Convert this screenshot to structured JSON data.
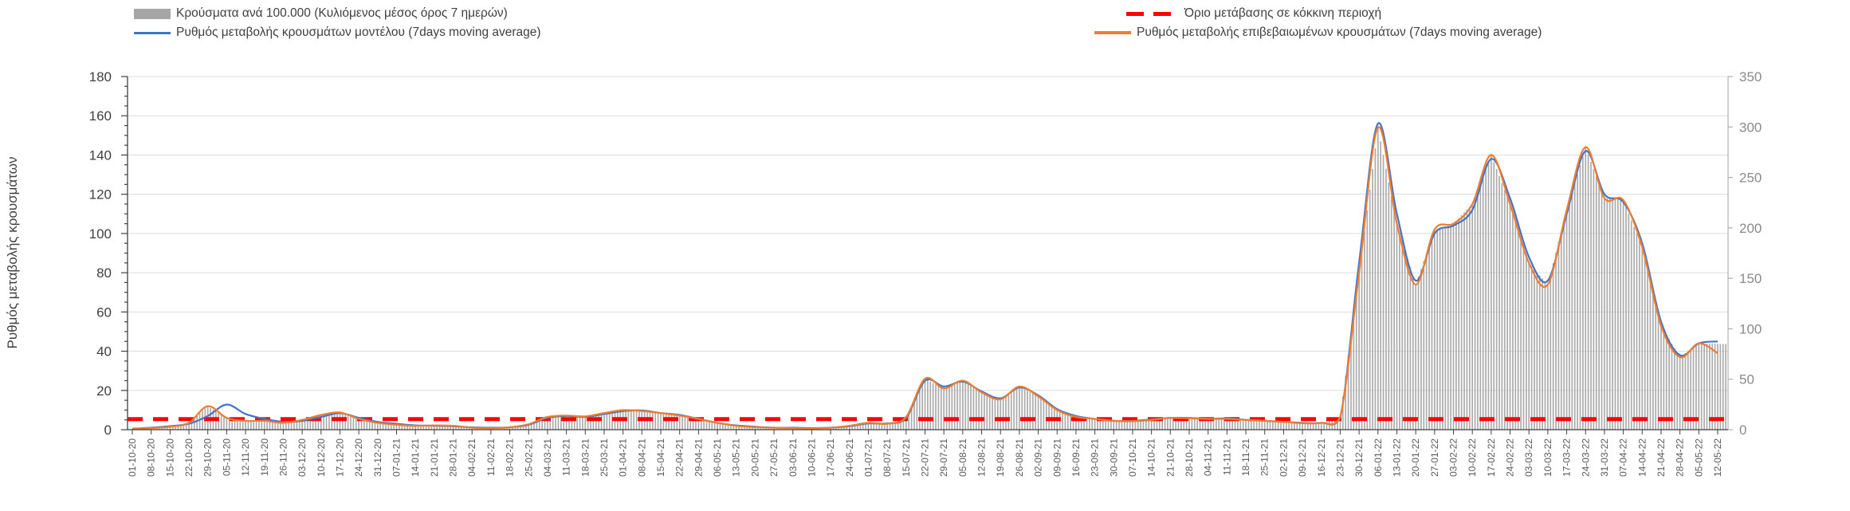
{
  "legend": {
    "cases": {
      "label": "Κρούσματα ανά 100.000 (Κυλιόμενος μέσος όρος 7 ημερών)",
      "color": "#a6a6a6"
    },
    "threshold": {
      "label": "Όριο μετάβασης σε κόκκινη περιοχή",
      "color": "#ff0000"
    },
    "model": {
      "label": "Ρυθμός μεταβολής κρουσμάτων μοντέλου (7days moving average)",
      "color": "#4472c4"
    },
    "confirmed": {
      "label": "Ρυθμός μεταβολής επιβεβαιωμένων κρουσμάτων (7days moving average)",
      "color": "#ed7d31"
    }
  },
  "chart_data": {
    "type": "combo-bar-line",
    "title": "",
    "left_axis": {
      "label": "Ρυθμός μεταβολής κρουσμάτων",
      "min": 0,
      "max": 180,
      "tick_step": 20,
      "minor_tick_step": 5,
      "tick_color": "#404040"
    },
    "right_axis": {
      "label": "",
      "min": 0,
      "max": 350,
      "tick_step": 50,
      "tick_color": "#8a8a8a"
    },
    "grid": {
      "color": "#dcdcdc",
      "horizontal_step_left_axis": 20
    },
    "threshold": {
      "name": "Όριο μετάβασης σε κόκκινη περιοχή",
      "left_axis_value": 5.4,
      "color": "#ff0000",
      "style": "dashed"
    },
    "categories": [
      "01-10-20",
      "08-10-20",
      "15-10-20",
      "22-10-20",
      "29-10-20",
      "05-11-20",
      "12-11-20",
      "19-11-20",
      "26-11-20",
      "03-12-20",
      "10-12-20",
      "17-12-20",
      "24-12-20",
      "31-12-20",
      "07-01-21",
      "14-01-21",
      "21-01-21",
      "28-01-21",
      "04-02-21",
      "11-02-21",
      "18-02-21",
      "25-02-21",
      "04-03-21",
      "11-03-21",
      "18-03-21",
      "25-03-21",
      "01-04-21",
      "08-04-21",
      "15-04-21",
      "22-04-21",
      "29-04-21",
      "06-05-21",
      "13-05-21",
      "20-05-21",
      "27-05-21",
      "03-06-21",
      "10-06-21",
      "17-06-21",
      "24-06-21",
      "01-07-21",
      "08-07-21",
      "15-07-21",
      "22-07-21",
      "29-07-21",
      "05-08-21",
      "12-08-21",
      "19-08-21",
      "26-08-21",
      "02-09-21",
      "09-09-21",
      "16-09-21",
      "23-09-21",
      "30-09-21",
      "07-10-21",
      "14-10-21",
      "21-10-21",
      "28-10-21",
      "04-11-21",
      "11-11-21",
      "18-11-21",
      "25-11-21",
      "02-12-21",
      "09-12-21",
      "16-12-21",
      "23-12-21",
      "30-12-21",
      "06-01-22",
      "13-01-22",
      "20-01-22",
      "27-01-22",
      "03-02-22",
      "10-02-22",
      "17-02-22",
      "24-02-22",
      "03-03-22",
      "10-03-22",
      "17-03-22",
      "24-03-22",
      "31-03-22",
      "07-04-22",
      "14-04-22",
      "21-04-22",
      "28-04-22",
      "05-05-22",
      "12-05-22"
    ],
    "series": [
      {
        "key": "cases",
        "name": "Κρούσματα ανά 100.000 (Κυλιόμενος μέσος όρος 7 ημερών)",
        "type": "bar",
        "axis": "right",
        "color": "#ababab",
        "values": [
          0.6,
          1.6,
          2.9,
          6.8,
          23.3,
          11.7,
          8.7,
          8.7,
          6.8,
          9.7,
          14.6,
          17.1,
          10.7,
          6.8,
          4.9,
          3.9,
          4.3,
          3.9,
          1.9,
          1.6,
          2.3,
          5.4,
          12.6,
          14,
          13.2,
          16.5,
          19.4,
          18.5,
          16.5,
          14,
          10.7,
          6.8,
          3.9,
          2.5,
          1.9,
          1.6,
          1.4,
          1.9,
          3.9,
          6.8,
          5.8,
          12.6,
          50.6,
          40.8,
          48.6,
          36.9,
          30.1,
          42.8,
          33.1,
          19.4,
          12.6,
          10.7,
          8.7,
          8.4,
          9.7,
          11.7,
          11.3,
          10.7,
          10.7,
          9.7,
          8.7,
          7.8,
          6.4,
          6.8,
          12.6,
          155.6,
          299.4,
          204.2,
          143.9,
          198.3,
          204.2,
          223.6,
          272.2,
          223.6,
          165.3,
          143.9,
          217.8,
          280,
          229.4,
          227.5,
          180.8,
          103,
          71.9,
          85.6,
          85
        ]
      },
      {
        "key": "model",
        "name": "Ρυθμός μεταβολής κρουσμάτων μοντέλου (7days moving average)",
        "type": "line",
        "axis": "left",
        "color": "#4472c4",
        "values": [
          0.5,
          1,
          1.8,
          3,
          7,
          12.8,
          8,
          5.5,
          4,
          4.5,
          6.5,
          8.5,
          6,
          4,
          3,
          2.2,
          2,
          1.8,
          1.2,
          1,
          1.2,
          2.5,
          6,
          7,
          6.5,
          8,
          9.5,
          9.8,
          8.5,
          7.5,
          5.5,
          3.5,
          2.2,
          1.5,
          1,
          1,
          0.8,
          1,
          1.8,
          3.2,
          3.2,
          6,
          25,
          22,
          24.5,
          19.5,
          16,
          21.5,
          17.5,
          10.5,
          7,
          5.5,
          4.5,
          4.5,
          5.2,
          6,
          6,
          5.5,
          5.8,
          5,
          4.5,
          4,
          3.5,
          3.5,
          6,
          85,
          156,
          110,
          76,
          100,
          104,
          112,
          138,
          118,
          88,
          76,
          110,
          142,
          120,
          116,
          95,
          55,
          38,
          44,
          45
        ]
      },
      {
        "key": "confirmed",
        "name": "Ρυθμός μεταβολής επιβεβαιωμένων κρουσμάτων (7days moving average)",
        "type": "line",
        "axis": "left",
        "color": "#ed7d31",
        "values": [
          0.3,
          0.8,
          1.5,
          3.5,
          12,
          6,
          4.5,
          4.5,
          3.5,
          5,
          7.5,
          8.8,
          5.5,
          3.5,
          2.5,
          2,
          2.2,
          2,
          1,
          0.8,
          1.2,
          2.8,
          6.5,
          7.2,
          6.8,
          8.5,
          10,
          9.5,
          8.5,
          7.2,
          5.5,
          3.5,
          2,
          1.3,
          1,
          0.8,
          0.7,
          1,
          2,
          3.5,
          3,
          6.5,
          26,
          21,
          25,
          19,
          15.5,
          22,
          17,
          10,
          6.5,
          5.5,
          4.5,
          4.3,
          5,
          6,
          5.8,
          5.5,
          5.5,
          5,
          4.5,
          4,
          3.3,
          3.5,
          6.5,
          80,
          154,
          105,
          74,
          102,
          105,
          115,
          140,
          115,
          85,
          74,
          112,
          144,
          118,
          117,
          93,
          53,
          37,
          44,
          39
        ]
      }
    ]
  }
}
